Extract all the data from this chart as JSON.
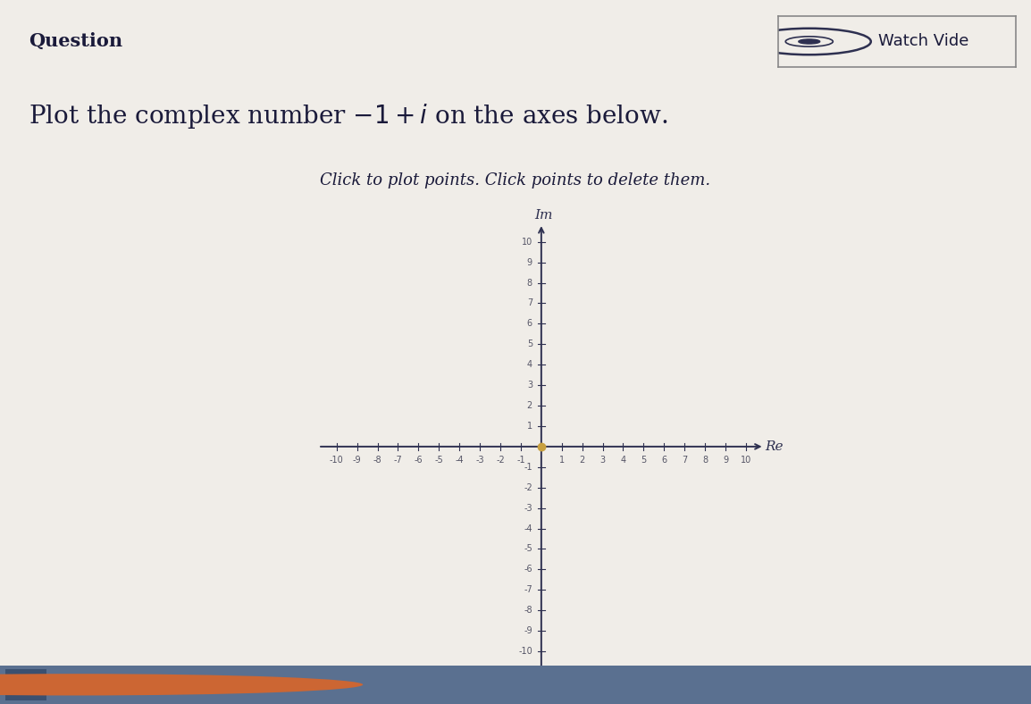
{
  "title_text": "Question",
  "instruction_text": "Plot the complex number $-1 + i$ on the axes below.",
  "sub_instruction": "Click to plot points. Click points to delete them.",
  "watch_video_text": "Watch Vide",
  "axis_min": -10,
  "axis_max": 10,
  "xlabel": "Re",
  "ylabel": "Im",
  "background_color": "#eaeaea",
  "page_color": "#f0ede8",
  "axis_color": "#2e3050",
  "tick_label_color": "#555566",
  "dot_color": "#c8a040",
  "dot_size": 50,
  "title_fontsize": 15,
  "instruction_fontsize": 20,
  "sub_instruction_fontsize": 13,
  "axis_label_fontsize": 11,
  "tick_fontsize": 7,
  "watch_fontsize": 13,
  "title_color": "#1a1a3a",
  "instruction_color": "#1a1a3a",
  "sub_color": "#1a1a3a"
}
